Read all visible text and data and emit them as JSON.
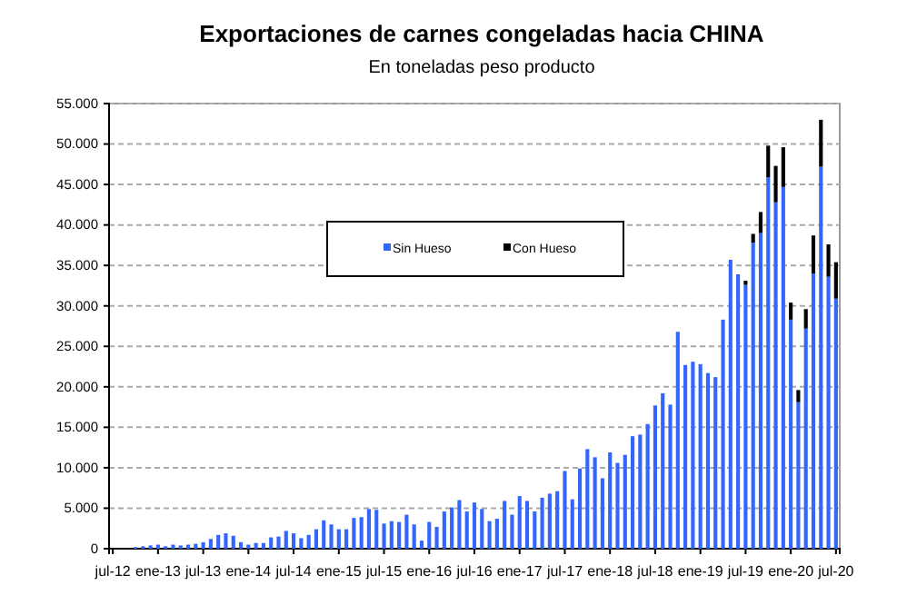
{
  "chart_data": {
    "type": "bar",
    "title": "Exportaciones de carnes congeladas hacia CHINA",
    "subtitle": "En toneladas peso producto",
    "categories": [
      "jul-12",
      null,
      null,
      null,
      null,
      null,
      "ene-13",
      null,
      null,
      null,
      null,
      null,
      "jul-13",
      null,
      null,
      null,
      null,
      null,
      "ene-14",
      null,
      null,
      null,
      null,
      null,
      "jul-14",
      null,
      null,
      null,
      null,
      null,
      "ene-15",
      null,
      null,
      null,
      null,
      null,
      "jul-15",
      null,
      null,
      null,
      null,
      null,
      "ene-16",
      null,
      null,
      null,
      null,
      null,
      "jul-16",
      null,
      null,
      null,
      null,
      null,
      "ene-17",
      null,
      null,
      null,
      null,
      null,
      "jul-17",
      null,
      null,
      null,
      null,
      null,
      "ene-18",
      null,
      null,
      null,
      null,
      null,
      "jul-18",
      null,
      null,
      null,
      null,
      null,
      "ene-19",
      null,
      null,
      null,
      null,
      null,
      "jul-19",
      null,
      null,
      null,
      null,
      null,
      "ene-20",
      null,
      null,
      null,
      null,
      null,
      "jul-20"
    ],
    "stacked": true,
    "series": [
      {
        "name": "Sin Hueso",
        "color": "#3366ff",
        "values": [
          null,
          null,
          null,
          200,
          300,
          400,
          500,
          300,
          500,
          400,
          500,
          600,
          800,
          1200,
          1700,
          1900,
          1600,
          800,
          500,
          700,
          700,
          1400,
          1500,
          2200,
          1900,
          1300,
          1700,
          2400,
          3500,
          3000,
          2400,
          2400,
          3800,
          3900,
          4900,
          4800,
          3100,
          3400,
          3300,
          4200,
          3000,
          1000,
          3300,
          2700,
          4600,
          5100,
          6000,
          4600,
          5700,
          4900,
          3400,
          3700,
          5900,
          4200,
          6500,
          5900,
          4600,
          6300,
          6800,
          7100,
          9600,
          6100,
          9900,
          12300,
          11300,
          8700,
          11900,
          10600,
          11600,
          13900,
          14100,
          15400,
          17700,
          19200,
          17800,
          26800,
          22700,
          23100,
          22800,
          21700,
          21200,
          28300,
          35700,
          33900,
          32600,
          37800,
          39000,
          45900,
          42800,
          44700,
          28300,
          18100,
          27200,
          34000,
          47200,
          33600,
          30900
        ]
      },
      {
        "name": "Con Hueso",
        "color": "#000000",
        "values": [
          null,
          null,
          null,
          null,
          null,
          null,
          null,
          null,
          null,
          null,
          null,
          null,
          null,
          null,
          null,
          null,
          null,
          null,
          null,
          null,
          null,
          null,
          null,
          null,
          null,
          null,
          null,
          null,
          null,
          null,
          null,
          null,
          null,
          null,
          null,
          null,
          null,
          null,
          null,
          null,
          null,
          null,
          null,
          null,
          null,
          null,
          null,
          null,
          null,
          null,
          null,
          null,
          null,
          null,
          null,
          null,
          null,
          null,
          null,
          null,
          null,
          null,
          null,
          null,
          null,
          null,
          null,
          null,
          null,
          null,
          null,
          null,
          null,
          null,
          null,
          null,
          null,
          null,
          null,
          null,
          null,
          null,
          null,
          null,
          500,
          1100,
          2600,
          3900,
          4500,
          4900,
          2100,
          1500,
          2400,
          4700,
          5800,
          4000,
          4500
        ]
      }
    ],
    "ylim": [
      0,
      55000
    ],
    "yticks": [
      0,
      {
        "value": 5000,
        "label": "5.000"
      },
      {
        "value": 10000,
        "label": "10.000"
      },
      {
        "value": 15000,
        "label": "15.000"
      },
      {
        "value": 20000,
        "label": "20.000"
      },
      {
        "value": 25000,
        "label": "25.000"
      },
      {
        "value": 30000,
        "label": "30.000"
      },
      {
        "value": 35000,
        "label": "35.000"
      },
      {
        "value": 40000,
        "label": "40.000"
      },
      {
        "value": 45000,
        "label": "45.000"
      },
      {
        "value": 50000,
        "label": "50.000"
      },
      {
        "value": 55000,
        "label": "55.000"
      }
    ],
    "grid": "y",
    "legend": "top"
  }
}
